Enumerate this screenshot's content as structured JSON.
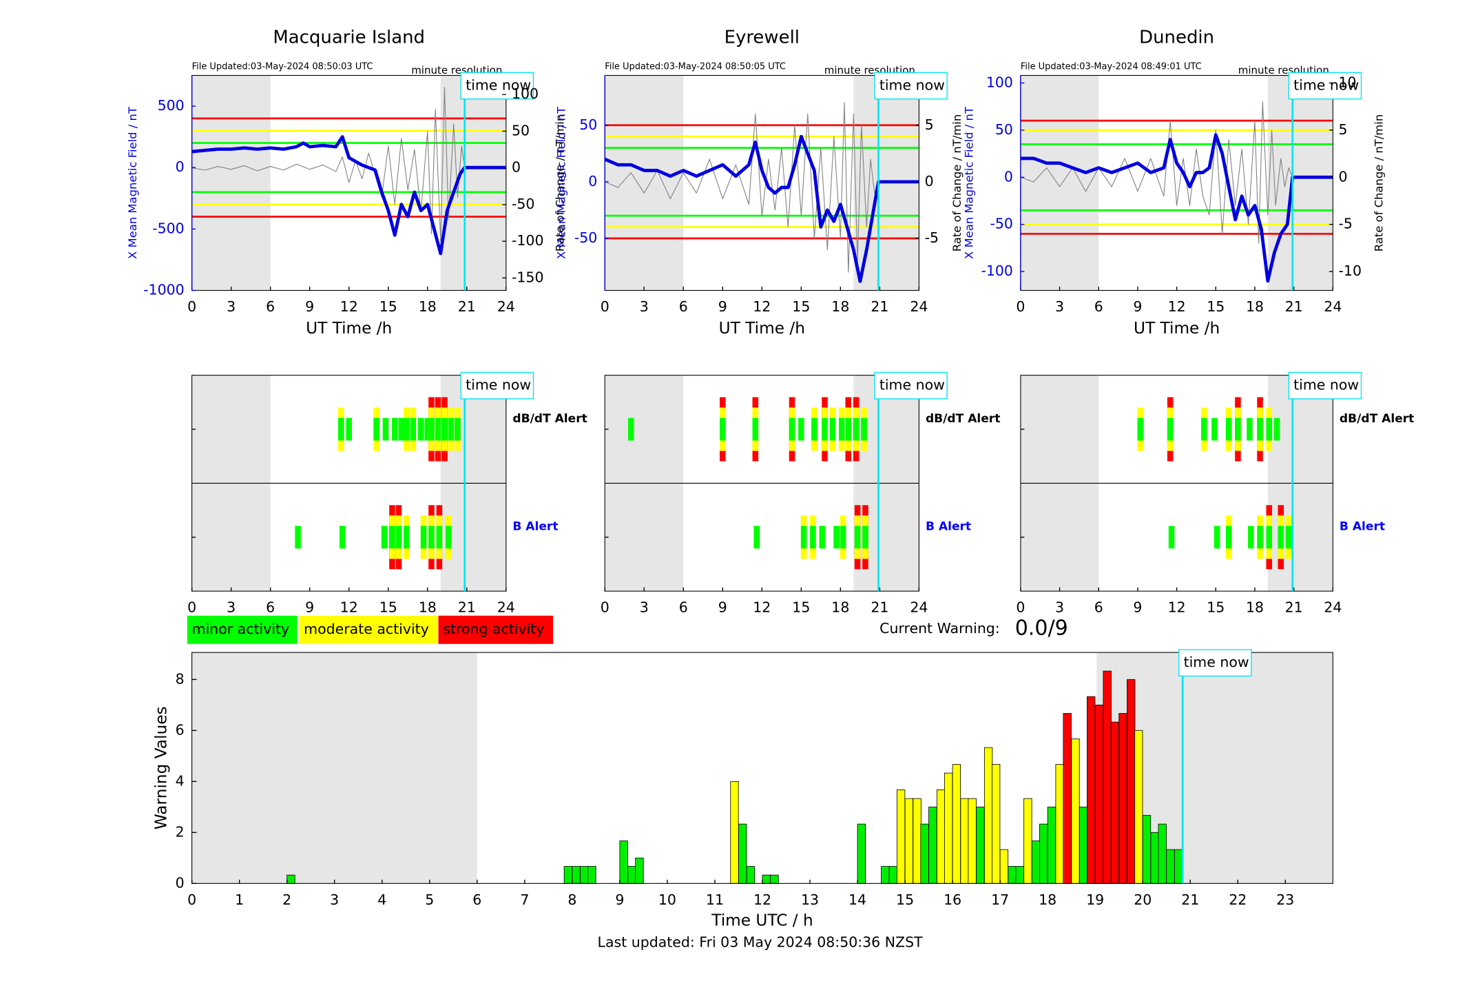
{
  "chart_data": [
    {
      "type": "line",
      "title": "Macquarie Island",
      "file_updated": "File Updated:03-May-2024 08:50:03 UTC",
      "resolution_note": "minute resolution",
      "time_now": 20.84,
      "time_now_label": "time now",
      "xlabel": "UT Time /h",
      "ylabel": "X Mean Magnetic Field / nT",
      "y2label": "Rate of Change / nT/min",
      "xlim": [
        0,
        24
      ],
      "xticks": [
        0,
        3,
        6,
        9,
        12,
        15,
        18,
        21,
        24
      ],
      "ylim": [
        -1000,
        750
      ],
      "yticks": [
        -1000,
        -500,
        0,
        500
      ],
      "y2lim": [
        -167,
        126
      ],
      "y2ticks": [
        -150,
        -100,
        -50,
        0,
        50,
        100
      ],
      "shaded": [
        [
          0,
          6
        ],
        [
          19,
          24
        ]
      ],
      "thresholds": [
        {
          "value": 400,
          "color": "#ff0000"
        },
        {
          "value": 300,
          "color": "#ffff00"
        },
        {
          "value": 200,
          "color": "#00ff00"
        },
        {
          "value": -200,
          "color": "#00ff00"
        },
        {
          "value": -300,
          "color": "#ffff00"
        },
        {
          "value": -400,
          "color": "#ff0000"
        }
      ],
      "series": [
        {
          "color": "#808080",
          "axis": "y2",
          "x": [
            0,
            1,
            2,
            3,
            4,
            5,
            6,
            7,
            8,
            9,
            10,
            11,
            11.5,
            12,
            12.5,
            13,
            13.5,
            14,
            14.5,
            15,
            15.5,
            16,
            16.5,
            17,
            17.5,
            18,
            18.3,
            18.6,
            19,
            19.3,
            19.6,
            20,
            20.3,
            20.6,
            20.84
          ],
          "values": [
            0,
            -3,
            2,
            -2,
            3,
            -4,
            2,
            -3,
            5,
            -2,
            4,
            -5,
            15,
            -20,
            10,
            -15,
            20,
            -10,
            -40,
            30,
            -50,
            40,
            -30,
            25,
            -60,
            50,
            -90,
            80,
            -100,
            110,
            -70,
            60,
            -40,
            30,
            0
          ]
        },
        {
          "color": "#0000e0",
          "axis": "y",
          "x": [
            0,
            1,
            2,
            3,
            4,
            5,
            6,
            7,
            8,
            8.5,
            9,
            10,
            11,
            11.5,
            12,
            12.5,
            13,
            13.5,
            14,
            14.5,
            15,
            15.5,
            16,
            16.5,
            17,
            17.5,
            18,
            18.5,
            19,
            19.5,
            20,
            20.5,
            20.84,
            24
          ],
          "values": [
            130,
            140,
            150,
            150,
            160,
            150,
            160,
            150,
            170,
            200,
            170,
            180,
            170,
            250,
            80,
            50,
            20,
            0,
            -20,
            -200,
            -350,
            -550,
            -300,
            -400,
            -200,
            -350,
            -300,
            -500,
            -700,
            -350,
            -200,
            -50,
            0,
            0
          ]
        }
      ]
    },
    {
      "type": "line",
      "title": "Eyrewell",
      "file_updated": "File Updated:03-May-2024 08:50:05 UTC",
      "resolution_note": "minute resolution",
      "time_now": 20.9,
      "time_now_label": "time now",
      "xlabel": "UT Time /h",
      "ylabel": "X Mean Magnetic Field / nT",
      "y2label": "Rate of Change / nT/min",
      "xlim": [
        0,
        24
      ],
      "xticks": [
        0,
        3,
        6,
        9,
        12,
        15,
        18,
        21,
        24
      ],
      "ylim": [
        -96,
        94
      ],
      "yticks": [
        -50,
        0,
        50
      ],
      "y2lim": [
        -9.6,
        9.4
      ],
      "y2ticks": [
        -5,
        0,
        5
      ],
      "shaded": [
        [
          0,
          6
        ],
        [
          19,
          24
        ]
      ],
      "thresholds": [
        {
          "value": 50,
          "color": "#ff0000"
        },
        {
          "value": 40,
          "color": "#ffff00"
        },
        {
          "value": 30,
          "color": "#00ff00"
        },
        {
          "value": -30,
          "color": "#00ff00"
        },
        {
          "value": -40,
          "color": "#ffff00"
        },
        {
          "value": -50,
          "color": "#ff0000"
        }
      ],
      "series": [
        {
          "color": "#808080",
          "axis": "y2",
          "x": [
            0,
            1,
            2,
            3,
            4,
            5,
            6,
            7,
            8,
            9,
            10,
            11,
            11.5,
            12,
            12.5,
            13,
            13.5,
            14,
            14.5,
            15,
            15.5,
            16,
            16.5,
            17,
            17.5,
            18,
            18.3,
            18.6,
            19,
            19.3,
            19.6,
            20,
            20.3,
            20.6,
            20.9
          ],
          "values": [
            0,
            -0.5,
            0.8,
            -1,
            1,
            -1.5,
            0.8,
            -1,
            2,
            -1.5,
            1.5,
            -2,
            6,
            -3,
            2,
            -2.5,
            3,
            -4,
            5,
            -3,
            6,
            -5,
            3,
            -6,
            4,
            -5,
            7,
            -8,
            6,
            -7,
            5,
            -4,
            2,
            -1,
            0
          ]
        },
        {
          "color": "#0000e0",
          "axis": "y",
          "x": [
            0,
            1,
            2,
            3,
            4,
            5,
            6,
            7,
            8,
            9,
            10,
            11,
            11.5,
            12,
            12.5,
            13,
            13.5,
            14,
            14.5,
            15,
            15.5,
            16,
            16.5,
            17,
            17.5,
            18,
            18.5,
            19,
            19.5,
            20,
            20.9,
            24
          ],
          "values": [
            20,
            15,
            15,
            10,
            10,
            5,
            10,
            5,
            10,
            15,
            5,
            15,
            35,
            10,
            -5,
            -10,
            -5,
            -5,
            15,
            40,
            25,
            10,
            -40,
            -25,
            -35,
            -20,
            -40,
            -60,
            -88,
            -60,
            0,
            0
          ]
        }
      ]
    },
    {
      "type": "line",
      "title": "Dunedin",
      "file_updated": "File Updated:03-May-2024 08:49:01 UTC",
      "resolution_note": "minute resolution",
      "time_now": 20.9,
      "time_now_label": "time now",
      "xlabel": "UT Time /h",
      "ylabel": "X Mean Magnetic Field / nT",
      "y2label": "Rate of Change / nT/min",
      "xlim": [
        0,
        24
      ],
      "xticks": [
        0,
        3,
        6,
        9,
        12,
        15,
        18,
        21,
        24
      ],
      "ylim": [
        -120,
        108
      ],
      "yticks": [
        -100,
        -50,
        0,
        50,
        100
      ],
      "y2lim": [
        -12,
        10.8
      ],
      "y2ticks": [
        -10,
        -5,
        0,
        5,
        10
      ],
      "shaded": [
        [
          0,
          6
        ],
        [
          19,
          24
        ]
      ],
      "thresholds": [
        {
          "value": 60,
          "color": "#ff0000"
        },
        {
          "value": 50,
          "color": "#ffff00"
        },
        {
          "value": 35,
          "color": "#00ff00"
        },
        {
          "value": -35,
          "color": "#00ff00"
        },
        {
          "value": -50,
          "color": "#ffff00"
        },
        {
          "value": -60,
          "color": "#ff0000"
        }
      ],
      "series": [
        {
          "color": "#808080",
          "axis": "y2",
          "x": [
            0,
            1,
            2,
            3,
            4,
            5,
            6,
            7,
            8,
            9,
            10,
            11,
            11.5,
            12,
            12.5,
            13,
            13.5,
            14,
            14.5,
            15,
            15.5,
            16,
            16.5,
            17,
            17.5,
            18,
            18.3,
            18.6,
            19,
            19.3,
            19.6,
            20,
            20.3,
            20.6,
            20.9
          ],
          "values": [
            0,
            -0.5,
            1,
            -1,
            1,
            -1.5,
            1,
            -1,
            2,
            -1.5,
            2,
            -2,
            6,
            -3,
            2,
            -3,
            3,
            -2,
            -4,
            5,
            -6,
            4,
            -3,
            3,
            -5,
            6,
            -7,
            8,
            -4,
            5,
            -3,
            2,
            -1,
            1,
            0
          ]
        },
        {
          "color": "#0000e0",
          "axis": "y",
          "x": [
            0,
            1,
            2,
            3,
            4,
            5,
            6,
            7,
            8,
            9,
            10,
            11,
            11.5,
            12,
            12.5,
            13,
            13.5,
            14,
            14.5,
            15,
            15.5,
            16,
            16.5,
            17,
            17.5,
            18,
            18.5,
            19,
            19.5,
            20,
            20.5,
            20.9,
            24
          ],
          "values": [
            20,
            20,
            15,
            15,
            10,
            5,
            10,
            5,
            10,
            15,
            5,
            10,
            40,
            15,
            5,
            -10,
            5,
            5,
            10,
            45,
            25,
            -10,
            -45,
            -20,
            -40,
            -30,
            -55,
            -110,
            -80,
            -60,
            -50,
            0,
            0
          ]
        }
      ]
    },
    {
      "type": "alert",
      "time_now": 20.84,
      "time_now_label": "time now",
      "xlim": [
        0,
        24
      ],
      "xticks": [
        0,
        3,
        6,
        9,
        12,
        15,
        18,
        21,
        24
      ],
      "shaded": [
        [
          0,
          6
        ],
        [
          19,
          24
        ]
      ],
      "rows": [
        {
          "label": "dB/dT Alert",
          "color": "#000000",
          "x": [
            11.4,
            12.0,
            14.1,
            14.8,
            15.5,
            16.0,
            16.4,
            16.9,
            17.5,
            18.0,
            18.3,
            18.8,
            19.3,
            19.8,
            20.3
          ],
          "values": [
            2,
            1,
            2,
            1,
            1,
            1,
            2,
            2,
            1,
            1,
            3,
            3,
            3,
            2,
            2
          ]
        },
        {
          "label": "B Alert",
          "color": "#0000ff",
          "x": [
            8.1,
            11.5,
            14.7,
            15.3,
            15.8,
            16.4,
            17.7,
            18.3,
            18.9,
            19.6
          ],
          "values": [
            1,
            1,
            1,
            3,
            3,
            2,
            2,
            3,
            3,
            2
          ]
        }
      ]
    },
    {
      "type": "alert",
      "time_now": 20.9,
      "time_now_label": "time now",
      "xlim": [
        0,
        24
      ],
      "xticks": [
        0,
        3,
        6,
        9,
        12,
        15,
        18,
        21,
        24
      ],
      "shaded": [
        [
          0,
          6
        ],
        [
          19,
          24
        ]
      ],
      "rows": [
        {
          "label": "dB/dT Alert",
          "color": "#000000",
          "x": [
            2.0,
            9.0,
            11.5,
            14.3,
            15.0,
            16.0,
            16.8,
            17.4,
            18.1,
            18.6,
            19.2,
            19.8
          ],
          "values": [
            1,
            3,
            3,
            3,
            1,
            2,
            3,
            2,
            2,
            3,
            3,
            2
          ]
        },
        {
          "label": "B Alert",
          "color": "#0000ff",
          "x": [
            11.6,
            15.2,
            15.9,
            16.6,
            17.7,
            18.2,
            19.3,
            19.9
          ],
          "values": [
            1,
            2,
            2,
            1,
            1,
            2,
            3,
            3
          ]
        }
      ]
    },
    {
      "type": "alert",
      "time_now": 20.9,
      "time_now_label": "time now",
      "xlim": [
        0,
        24
      ],
      "xticks": [
        0,
        3,
        6,
        9,
        12,
        15,
        18,
        21,
        24
      ],
      "shaded": [
        [
          0,
          6
        ],
        [
          19,
          24
        ]
      ],
      "rows": [
        {
          "label": "dB/dT Alert",
          "color": "#000000",
          "x": [
            9.2,
            11.5,
            14.1,
            14.9,
            16.0,
            16.7,
            17.6,
            18.4,
            19.1,
            19.7
          ],
          "values": [
            2,
            3,
            2,
            1,
            2,
            3,
            1,
            3,
            2,
            1
          ]
        },
        {
          "label": "B Alert",
          "color": "#0000ff",
          "x": [
            11.6,
            15.1,
            16.0,
            17.7,
            18.4,
            19.1,
            20.0,
            20.6
          ],
          "values": [
            1,
            1,
            2,
            1,
            2,
            3,
            3,
            2
          ]
        }
      ]
    },
    {
      "type": "bar",
      "time_now": 20.84,
      "time_now_label": "time now",
      "xlabel": "Time UTC / h",
      "ylabel": "Warning Values",
      "xlim": [
        0,
        24
      ],
      "xticks": [
        0,
        1,
        2,
        3,
        4,
        5,
        6,
        7,
        8,
        9,
        10,
        11,
        12,
        13,
        14,
        15,
        16,
        17,
        18,
        19,
        20,
        21,
        22,
        23
      ],
      "ylim": [
        0,
        9.06
      ],
      "yticks": [
        0,
        2,
        4,
        6,
        8
      ],
      "shaded": [
        [
          0,
          6
        ],
        [
          19.03,
          24
        ]
      ],
      "x": [
        2.0,
        7.83,
        8.0,
        8.17,
        8.33,
        9.0,
        9.17,
        9.33,
        11.33,
        11.5,
        11.67,
        12.0,
        12.17,
        14.0,
        14.5,
        14.67,
        14.83,
        15.0,
        15.17,
        15.33,
        15.5,
        15.67,
        15.83,
        16.0,
        16.17,
        16.33,
        16.5,
        16.67,
        16.83,
        17.0,
        17.17,
        17.33,
        17.5,
        17.67,
        17.83,
        18.0,
        18.17,
        18.33,
        18.5,
        18.67,
        18.83,
        19.0,
        19.17,
        19.33,
        19.5,
        19.67,
        19.83,
        20.0,
        20.17,
        20.33,
        20.5,
        20.67
      ],
      "values": [
        0.33,
        0.67,
        0.67,
        0.67,
        0.67,
        1.67,
        0.67,
        1.0,
        4.0,
        2.33,
        0.67,
        0.33,
        0.33,
        2.33,
        0.67,
        0.67,
        3.67,
        3.33,
        3.33,
        2.33,
        3.0,
        3.67,
        4.33,
        4.67,
        3.33,
        3.33,
        3.0,
        5.33,
        4.67,
        1.33,
        0.67,
        0.67,
        3.33,
        1.67,
        2.33,
        3.0,
        4.67,
        6.67,
        5.67,
        3.0,
        7.33,
        7.0,
        8.33,
        6.33,
        6.67,
        8.0,
        6.0,
        2.67,
        2.0,
        2.33,
        1.33,
        1.33
      ],
      "colors": [
        "#00ee00",
        "#00ee00",
        "#00ee00",
        "#00ee00",
        "#00ee00",
        "#00ee00",
        "#00ee00",
        "#00ee00",
        "#ffff00",
        "#00ee00",
        "#00ee00",
        "#00ee00",
        "#00ee00",
        "#00ee00",
        "#00ee00",
        "#00ee00",
        "#ffff00",
        "#ffff00",
        "#ffff00",
        "#00ee00",
        "#00ee00",
        "#ffff00",
        "#ffff00",
        "#ffff00",
        "#ffff00",
        "#ffff00",
        "#00ee00",
        "#ffff00",
        "#ffff00",
        "#ffff00",
        "#00ee00",
        "#00ee00",
        "#ffff00",
        "#00ee00",
        "#00ee00",
        "#00ee00",
        "#ffff00",
        "#ff0000",
        "#ffff00",
        "#00ee00",
        "#ff0000",
        "#ff0000",
        "#ff0000",
        "#ff0000",
        "#ff0000",
        "#ff0000",
        "#ffff00",
        "#00ee00",
        "#00ee00",
        "#00ee00",
        "#00ee00",
        "#00ee00"
      ]
    }
  ],
  "legend": {
    "entries": [
      {
        "name": "minor activity",
        "color": "#00ff00"
      },
      {
        "name": "moderate activity",
        "color": "#ffff00"
      },
      {
        "name": "strong activity",
        "color": "#ff0000"
      }
    ]
  },
  "current_warning": {
    "label": "Current Warning:",
    "value": "0.0/9"
  },
  "footer": "Last updated: Fri 03 May 2024 08:50:36 NZST"
}
